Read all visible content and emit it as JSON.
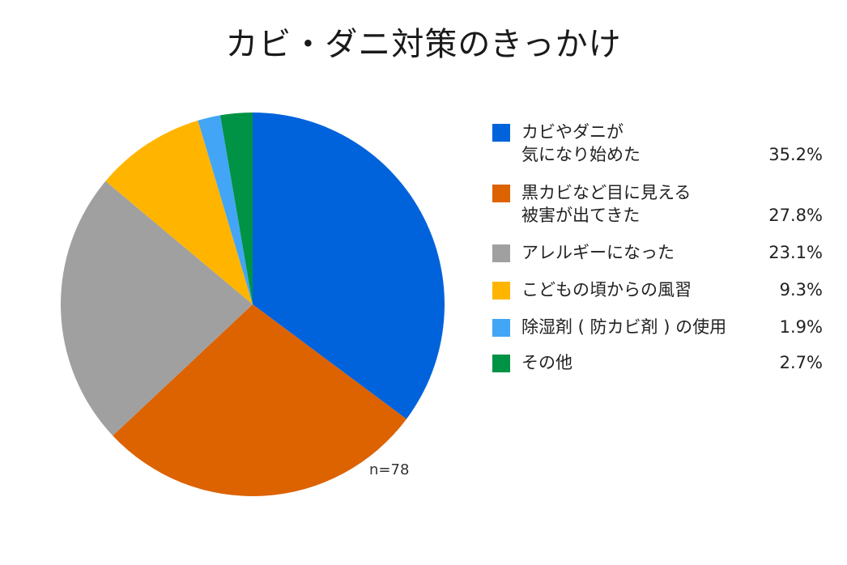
{
  "chart_data": {
    "type": "pie",
    "title": "カビ・ダニ対策のきっかけ",
    "note": "n=78",
    "slices": [
      {
        "label_lines": [
          "カビやダニが",
          "気になり始めた"
        ],
        "value": 35.2,
        "value_label": "35.2%",
        "color": "#0063dc"
      },
      {
        "label_lines": [
          "黒カビなど目に見える",
          "被害が出てきた"
        ],
        "value": 27.8,
        "value_label": "27.8%",
        "color": "#dd6200"
      },
      {
        "label_lines": [
          "アレルギーになった"
        ],
        "value": 23.1,
        "value_label": "23.1%",
        "color": "#a0a0a0"
      },
      {
        "label_lines": [
          "こどもの頃からの風習"
        ],
        "value": 9.3,
        "value_label": "9.3%",
        "color": "#ffb500"
      },
      {
        "label_lines": [
          "除湿剤 ( 防カビ剤 ) の使用"
        ],
        "value": 1.9,
        "value_label": "1.9%",
        "color": "#42a5f5"
      },
      {
        "label_lines": [
          "その他"
        ],
        "value": 2.7,
        "value_label": "2.7%",
        "color": "#009245"
      }
    ],
    "legend_position": "right"
  }
}
